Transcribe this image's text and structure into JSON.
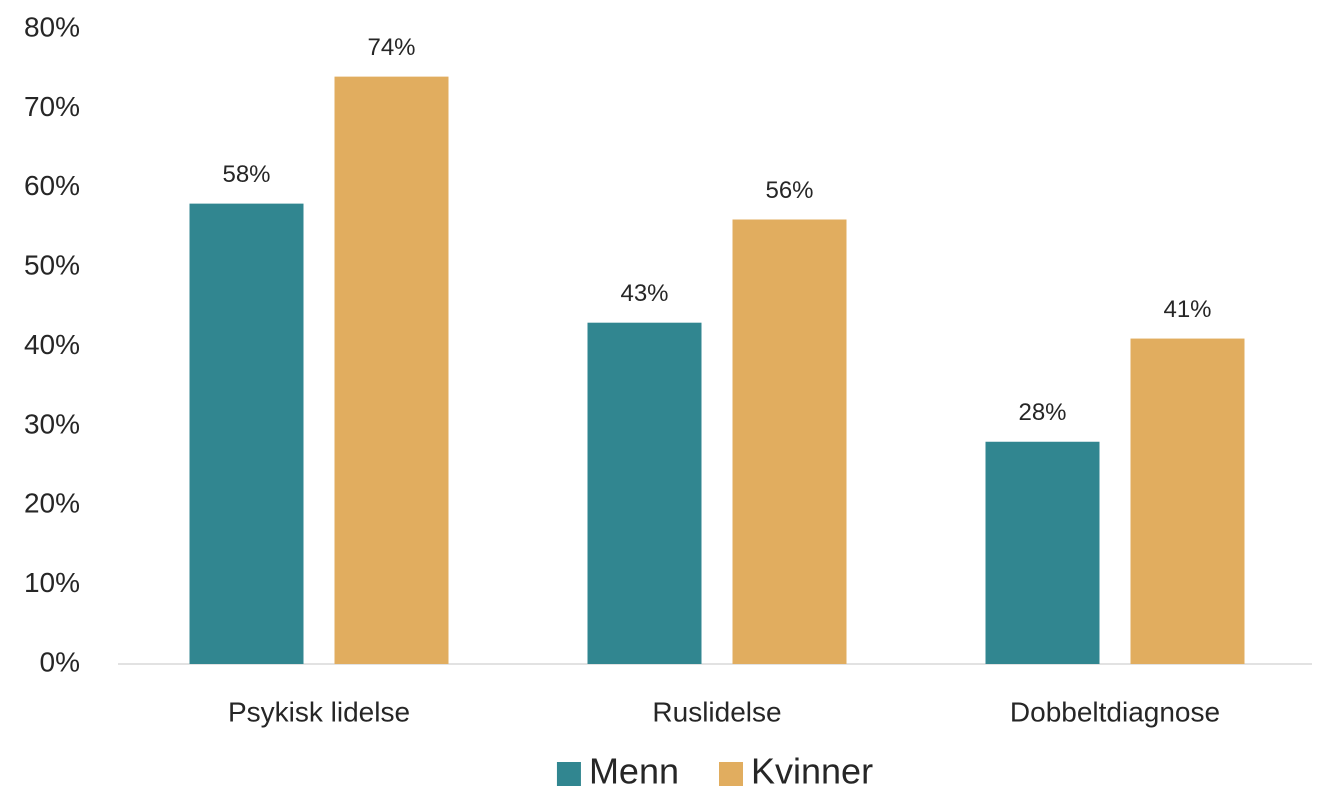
{
  "chart_data": {
    "type": "bar",
    "categories": [
      "Psykisk lidelse",
      "Ruslidelse",
      "Dobbeltdiagnose"
    ],
    "series": [
      {
        "name": "Menn",
        "color": "#318690",
        "values": [
          58,
          43,
          28
        ],
        "value_labels": [
          "58%",
          "43%",
          "28%"
        ]
      },
      {
        "name": "Kvinner",
        "color": "#e1ad5f",
        "values": [
          74,
          56,
          41
        ],
        "value_labels": [
          "74%",
          "56%",
          "41%"
        ]
      }
    ],
    "ylim": [
      0,
      80
    ],
    "yticks": [
      {
        "value": 0,
        "label": "0%"
      },
      {
        "value": 10,
        "label": "10%"
      },
      {
        "value": 20,
        "label": "20%"
      },
      {
        "value": 30,
        "label": "30%"
      },
      {
        "value": 40,
        "label": "40%"
      },
      {
        "value": 50,
        "label": "50%"
      },
      {
        "value": 60,
        "label": "60%"
      },
      {
        "value": 70,
        "label": "70%"
      },
      {
        "value": 80,
        "label": "80%"
      }
    ],
    "grid": false,
    "legend": "bottom"
  }
}
